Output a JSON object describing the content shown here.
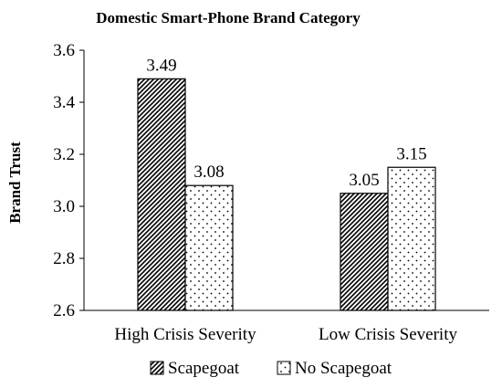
{
  "chart_data": {
    "type": "bar",
    "title": "Domestic Smart-Phone  Brand Category",
    "xlabel": "",
    "ylabel": "Brand Trust",
    "categories": [
      "High Crisis Severity",
      "Low Crisis Severity"
    ],
    "series": [
      {
        "name": "Scapegoat",
        "values": [
          3.49,
          3.05
        ],
        "pattern": "diagonal-hatch"
      },
      {
        "name": "No Scapegoat",
        "values": [
          3.08,
          3.15
        ],
        "pattern": "dots"
      }
    ],
    "data_labels": [
      [
        "3.49",
        "3.05"
      ],
      [
        "3.08",
        "3.15"
      ]
    ],
    "ylim": [
      2.6,
      3.6
    ],
    "yticks": [
      "2.6",
      "2.8",
      "3.0",
      "3.2",
      "3.4",
      "3.6"
    ],
    "ytick_values": [
      2.6,
      2.8,
      3.0,
      3.2,
      3.4,
      3.6
    ],
    "grid": false,
    "legend_position": "bottom"
  }
}
